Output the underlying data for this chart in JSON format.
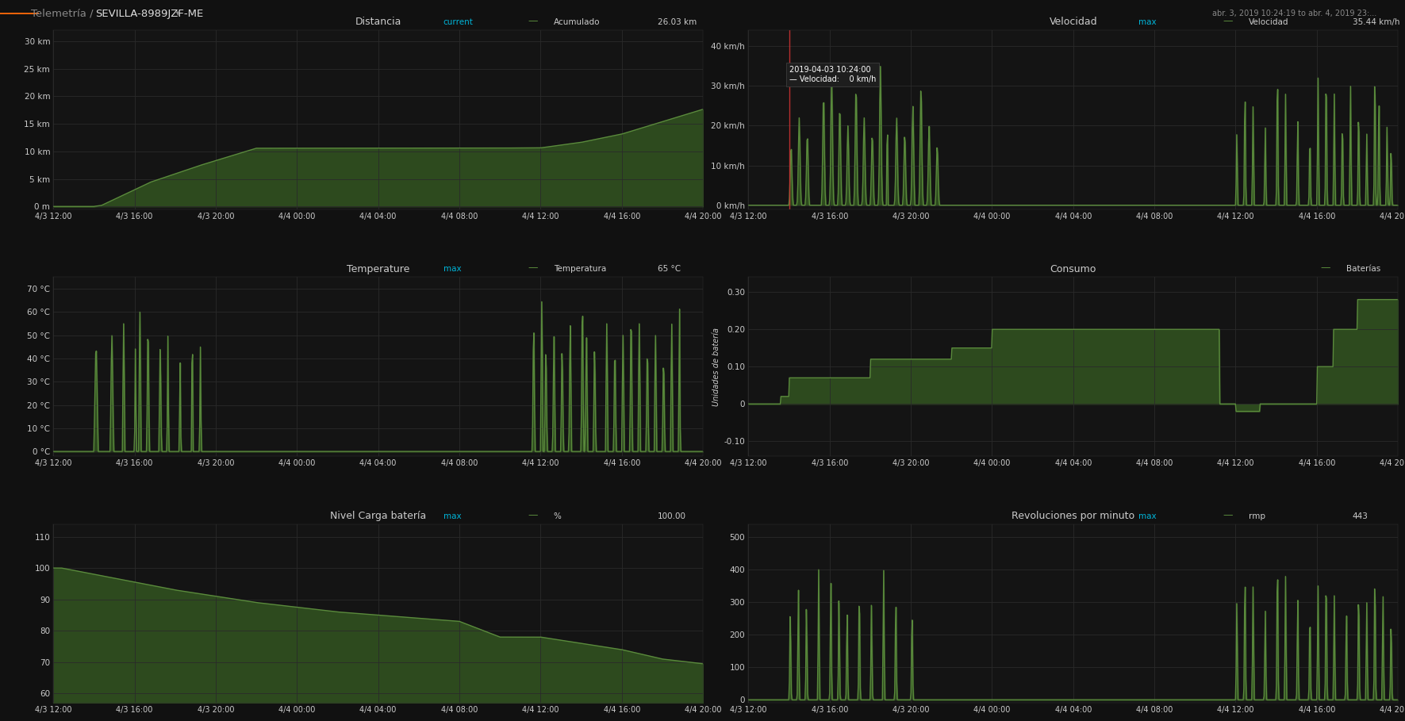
{
  "bg_color": "#111111",
  "panel_bg": "#141414",
  "grid_color": "#2a2a2a",
  "text_color": "#cccccc",
  "line_color": "#5a8a3c",
  "fill_color": "#2d4a1e",
  "cyan_color": "#00b4d8",
  "header_bg": "#0d0d0d",
  "chart1": {
    "title": "Distancia",
    "yticks": [
      0,
      5,
      10,
      15,
      20,
      25,
      30
    ],
    "ylabels": [
      "0 m",
      "5 km",
      "10 km",
      "15 km",
      "20 km",
      "25 km",
      "30 km"
    ],
    "ylim": [
      -0.5,
      32
    ],
    "legend_label": "Acumulado",
    "legend_value": "26.03 km",
    "legend_value_label": "current"
  },
  "chart2": {
    "title": "Velocidad",
    "yticks": [
      0,
      10,
      20,
      30,
      40
    ],
    "ylabels": [
      "0 km/h",
      "10 km/h",
      "20 km/h",
      "30 km/h",
      "40 km/h"
    ],
    "ylim": [
      -1,
      44
    ],
    "legend_label": "Velocidad",
    "legend_value": "35.44 km/h",
    "legend_value_label": "max"
  },
  "chart3": {
    "title": "Temperature",
    "yticks": [
      0,
      10,
      20,
      30,
      40,
      50,
      60,
      70
    ],
    "ylabels": [
      "0 °C",
      "10 °C",
      "20 °C",
      "30 °C",
      "40 °C",
      "50 °C",
      "60 °C",
      "70 °C"
    ],
    "ylim": [
      -2,
      75
    ],
    "legend_label": "Temperatura",
    "legend_value": "65 °C",
    "legend_value_label": "max"
  },
  "chart4": {
    "title": "Consumo",
    "yticks": [
      -0.1,
      0,
      0.1,
      0.2,
      0.3
    ],
    "ylabels": [
      "-0.10",
      "0",
      "0.10",
      "0.20",
      "0.30"
    ],
    "ylim": [
      -0.14,
      0.34
    ],
    "ylabel": "Unidades de batería",
    "legend_label": "Baterías"
  },
  "chart5": {
    "title": "Nivel Carga batería",
    "yticks": [
      60,
      70,
      80,
      90,
      100,
      110
    ],
    "ylabels": [
      "60",
      "70",
      "80",
      "90",
      "100",
      "110"
    ],
    "ylim": [
      57,
      114
    ],
    "legend_label": "%",
    "legend_value": "100.00",
    "legend_value_label": "max"
  },
  "chart6": {
    "title": "Revoluciones por minuto",
    "yticks": [
      0,
      100,
      200,
      300,
      400,
      500
    ],
    "ylabels": [
      "0",
      "100",
      "200",
      "300",
      "400",
      "500"
    ],
    "ylim": [
      -10,
      540
    ],
    "legend_label": "rmp",
    "legend_value": "443",
    "legend_value_label": "max"
  },
  "xtick_labels": [
    "4/3 12:00",
    "4/3 16:00",
    "4/3 20:00",
    "4/4 00:00",
    "4/4 04:00",
    "4/4 08:00",
    "4/4 12:00",
    "4/4 16:00",
    "4/4 20:00"
  ],
  "n_xticks": 9
}
